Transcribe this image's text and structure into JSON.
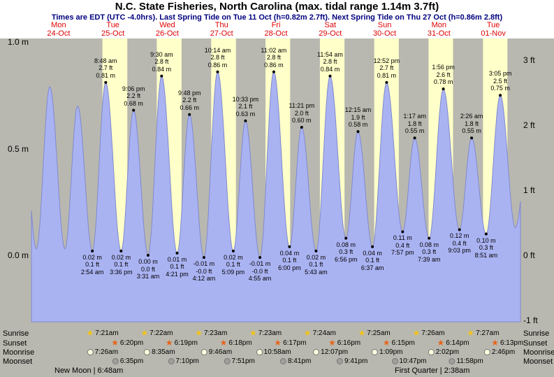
{
  "header": {
    "title": "N.C. State Fisheries, North Carolina (max. tidal range 1.14m 3.7ft)",
    "subtitle": "Times are EDT (UTC -4.0hrs). Last Spring Tide on Tue 11 Oct (h=0.82m 2.7ft). Next Spring Tide on Thu 27 Oct (h=0.86m 2.8ft)"
  },
  "colors": {
    "day_band": "#ffffc9",
    "night_band": "#b8b8b0",
    "tide_fill": "#aab3f2",
    "tide_stroke": "#8089cf",
    "day_label_red": "#e00000",
    "subtitle_navy": "#000080",
    "sunrise_star": "#f2c318",
    "sunset_star": "#e8641b",
    "moonrise_fill": "#ffffdd",
    "moonset_fill": "#a0a09a"
  },
  "days": [
    {
      "name": "Mon",
      "date": "24-Oct"
    },
    {
      "name": "Tue",
      "date": "25-Oct"
    },
    {
      "name": "Wed",
      "date": "26-Oct"
    },
    {
      "name": "Thu",
      "date": "27-Oct"
    },
    {
      "name": "Fri",
      "date": "28-Oct"
    },
    {
      "name": "Sat",
      "date": "29-Oct"
    },
    {
      "name": "Sun",
      "date": "30-Oct"
    },
    {
      "name": "Mon",
      "date": "31-Oct"
    },
    {
      "name": "Tue",
      "date": "01-Nov"
    }
  ],
  "y_axis": {
    "left": [
      {
        "label": "1.0 m",
        "m": 1.0
      },
      {
        "label": "0.5 m",
        "m": 0.5
      },
      {
        "label": "0.0 m",
        "m": 0.0
      }
    ],
    "right": [
      {
        "label": "3 ft",
        "ft": 3
      },
      {
        "label": "2 ft",
        "ft": 2
      },
      {
        "label": "1 ft",
        "ft": 1
      },
      {
        "label": "0 ft",
        "ft": 0
      },
      {
        "label": "-1 ft",
        "ft": -1
      }
    ]
  },
  "chart_data": {
    "type": "area",
    "title": "Tide height curve, Mon 24-Oct through Tue 01-Nov",
    "ylabel_left": "metres",
    "ylabel_right": "feet",
    "ylim_m": [
      -0.31,
      1.02
    ],
    "tide_events": [
      {
        "day": 0,
        "hour": 2.2,
        "height_m": 0.03,
        "type": "low",
        "labeled": false
      },
      {
        "day": 0,
        "hour": 8.1,
        "height_m": 0.79,
        "type": "high",
        "labeled": false
      },
      {
        "day": 0,
        "hour": 14.8,
        "height_m": 0.03,
        "type": "low",
        "labeled": false
      },
      {
        "day": 0,
        "hour": 20.4,
        "height_m": 0.7,
        "type": "high",
        "labeled": false
      },
      {
        "day": 1,
        "hour": 2.9,
        "height_m": 0.02,
        "type": "low",
        "labeled": true,
        "lines": [
          "0.02 m",
          "0.1 ft",
          "2:54 am"
        ]
      },
      {
        "day": 1,
        "hour": 8.8,
        "height_m": 0.81,
        "type": "high",
        "labeled": true,
        "lines": [
          "8:48 am",
          "2.7 ft",
          "0.81 m"
        ]
      },
      {
        "day": 1,
        "hour": 15.6,
        "height_m": 0.02,
        "type": "low",
        "labeled": true,
        "lines": [
          "0.02 m",
          "0.1 ft",
          "3:36 pm"
        ]
      },
      {
        "day": 1,
        "hour": 21.1,
        "height_m": 0.68,
        "type": "high",
        "labeled": true,
        "lines": [
          "9:06 pm",
          "2.2 ft",
          "0.68 m"
        ]
      },
      {
        "day": 2,
        "hour": 3.52,
        "height_m": 0.0,
        "type": "low",
        "labeled": true,
        "lines": [
          "0.00 m",
          "0.0 ft",
          "3:31 am"
        ]
      },
      {
        "day": 2,
        "hour": 9.5,
        "height_m": 0.84,
        "type": "high",
        "labeled": true,
        "lines": [
          "9:30 am",
          "2.8 ft",
          "0.84 m"
        ]
      },
      {
        "day": 2,
        "hour": 16.35,
        "height_m": 0.01,
        "type": "low",
        "labeled": true,
        "lines": [
          "0.01 m",
          "0.1 ft",
          "4:21 pm"
        ]
      },
      {
        "day": 2,
        "hour": 21.8,
        "height_m": 0.66,
        "type": "high",
        "labeled": true,
        "lines": [
          "9:48 pm",
          "2.2 ft",
          "0.66 m"
        ]
      },
      {
        "day": 3,
        "hour": 4.2,
        "height_m": -0.01,
        "type": "low",
        "labeled": true,
        "lines": [
          "-0.01 m",
          "-0.0 ft",
          "4:12 am"
        ]
      },
      {
        "day": 3,
        "hour": 10.23,
        "height_m": 0.86,
        "type": "high",
        "labeled": true,
        "lines": [
          "10:14 am",
          "2.8 ft",
          "0.86 m"
        ]
      },
      {
        "day": 3,
        "hour": 17.15,
        "height_m": 0.02,
        "type": "low",
        "labeled": true,
        "lines": [
          "0.02 m",
          "0.1 ft",
          "5:09 pm"
        ]
      },
      {
        "day": 3,
        "hour": 22.55,
        "height_m": 0.63,
        "type": "high",
        "labeled": true,
        "lines": [
          "10:33 pm",
          "2.1 ft",
          "0.63 m"
        ]
      },
      {
        "day": 4,
        "hour": 4.92,
        "height_m": -0.01,
        "type": "low",
        "labeled": true,
        "lines": [
          "-0.01 m",
          "-0.0 ft",
          "4:55 am"
        ]
      },
      {
        "day": 4,
        "hour": 11.03,
        "height_m": 0.86,
        "type": "high",
        "labeled": true,
        "lines": [
          "11:02 am",
          "2.8 ft",
          "0.86 m"
        ]
      },
      {
        "day": 4,
        "hour": 18.0,
        "height_m": 0.04,
        "type": "low",
        "labeled": true,
        "lines": [
          "0.04 m",
          "0.1 ft",
          "6:00 pm"
        ]
      },
      {
        "day": 4,
        "hour": 23.35,
        "height_m": 0.6,
        "type": "high",
        "labeled": true,
        "lines": [
          "11:21 pm",
          "2.0 ft",
          "0.60 m"
        ]
      },
      {
        "day": 5,
        "hour": 5.72,
        "height_m": 0.02,
        "type": "low",
        "labeled": true,
        "lines": [
          "0.02 m",
          "0.1 ft",
          "5:43 am"
        ]
      },
      {
        "day": 5,
        "hour": 11.9,
        "height_m": 0.84,
        "type": "high",
        "labeled": true,
        "lines": [
          "11:54 am",
          "2.8 ft",
          "0.84 m"
        ]
      },
      {
        "day": 5,
        "hour": 18.93,
        "height_m": 0.08,
        "type": "low",
        "labeled": true,
        "lines": [
          "0.08 m",
          "0.3 ft",
          "6:56 pm"
        ]
      },
      {
        "day": 6,
        "hour": 0.25,
        "height_m": 0.58,
        "type": "high",
        "labeled": true,
        "lines": [
          "12:15 am",
          "1.9 ft",
          "0.58 m"
        ]
      },
      {
        "day": 6,
        "hour": 6.62,
        "height_m": 0.04,
        "type": "low",
        "labeled": true,
        "lines": [
          "0.04 m",
          "0.1 ft",
          "6:37 am"
        ]
      },
      {
        "day": 6,
        "hour": 12.87,
        "height_m": 0.81,
        "type": "high",
        "labeled": true,
        "lines": [
          "12:52 pm",
          "2.7 ft",
          "0.81 m"
        ]
      },
      {
        "day": 6,
        "hour": 19.95,
        "height_m": 0.11,
        "type": "low",
        "labeled": true,
        "lines": [
          "0.11 m",
          "0.4 ft",
          "7:57 pm"
        ]
      },
      {
        "day": 7,
        "hour": 1.28,
        "height_m": 0.55,
        "type": "high",
        "labeled": true,
        "lines": [
          "1:17 am",
          "1.8 ft",
          "0.55 m"
        ]
      },
      {
        "day": 7,
        "hour": 7.65,
        "height_m": 0.08,
        "type": "low",
        "labeled": true,
        "lines": [
          "0.08 m",
          "0.3 ft",
          "7:39 am"
        ]
      },
      {
        "day": 7,
        "hour": 13.93,
        "height_m": 0.78,
        "type": "high",
        "labeled": true,
        "lines": [
          "1:56 pm",
          "2.6 ft",
          "0.78 m"
        ]
      },
      {
        "day": 7,
        "hour": 21.05,
        "height_m": 0.12,
        "type": "low",
        "labeled": true,
        "lines": [
          "0.12 m",
          "0.4 ft",
          "9:03 pm"
        ]
      },
      {
        "day": 8,
        "hour": 2.43,
        "height_m": 0.55,
        "type": "high",
        "labeled": true,
        "lines": [
          "2:26 am",
          "1.8 ft",
          "0.55 m"
        ]
      },
      {
        "day": 8,
        "hour": 8.85,
        "height_m": 0.1,
        "type": "low",
        "labeled": true,
        "lines": [
          "0.10 m",
          "0.3 ft",
          "8:51 am"
        ]
      },
      {
        "day": 8,
        "hour": 15.08,
        "height_m": 0.75,
        "type": "high",
        "labeled": true,
        "lines": [
          "3:05 pm",
          "2.5 ft",
          "0.75 m"
        ]
      },
      {
        "day": 8,
        "hour": 21.75,
        "height_m": 0.13,
        "type": "low",
        "labeled": false
      }
    ],
    "offchart_events": [
      {
        "day": -1,
        "hour": 19.75,
        "height_m": 0.72
      },
      {
        "day": 9,
        "hour": 3.9,
        "height_m": 0.55
      }
    ]
  },
  "astro": {
    "row_labels": {
      "sunrise": "Sunrise",
      "sunset": "Sunset",
      "moonrise": "Moonrise",
      "moonset": "Moonset"
    },
    "sunrise": [
      {
        "day": 1,
        "time": "7:21am"
      },
      {
        "day": 2,
        "time": "7:22am"
      },
      {
        "day": 3,
        "time": "7:23am"
      },
      {
        "day": 4,
        "time": "7:23am"
      },
      {
        "day": 5,
        "time": "7:24am"
      },
      {
        "day": 6,
        "time": "7:25am"
      },
      {
        "day": 7,
        "time": "7:26am"
      },
      {
        "day": 8,
        "time": "7:27am"
      }
    ],
    "sunset": [
      {
        "day": 1,
        "time": "6:20pm"
      },
      {
        "day": 2,
        "time": "6:19pm"
      },
      {
        "day": 3,
        "time": "6:18pm"
      },
      {
        "day": 4,
        "time": "6:17pm"
      },
      {
        "day": 5,
        "time": "6:16pm"
      },
      {
        "day": 6,
        "time": "6:15pm"
      },
      {
        "day": 7,
        "time": "6:14pm"
      },
      {
        "day": 8,
        "time": "6:13pm"
      }
    ],
    "moonrise": [
      {
        "day": 1,
        "time": "7:26am"
      },
      {
        "day": 2,
        "time": "8:35am"
      },
      {
        "day": 3,
        "time": "9:46am"
      },
      {
        "day": 4,
        "time": "10:58am"
      },
      {
        "day": 5,
        "time": "12:07pm"
      },
      {
        "day": 6,
        "time": "1:09pm"
      },
      {
        "day": 7,
        "time": "2:02pm"
      },
      {
        "day": 8,
        "time": "2:46pm"
      }
    ],
    "moonset": [
      {
        "day": 1,
        "time": "6:35pm"
      },
      {
        "day": 2,
        "time": "7:10pm"
      },
      {
        "day": 3,
        "time": "7:51pm"
      },
      {
        "day": 4,
        "time": "8:41pm"
      },
      {
        "day": 5,
        "time": "9:41pm"
      },
      {
        "day": 6,
        "time": "10:47pm"
      },
      {
        "day": 7,
        "time": "11:58pm"
      }
    ],
    "moon_phases": [
      {
        "name": "New Moon",
        "time": "6:48am",
        "side": "left"
      },
      {
        "name": "First Quarter",
        "time": "2:38am",
        "side": "right"
      }
    ]
  }
}
